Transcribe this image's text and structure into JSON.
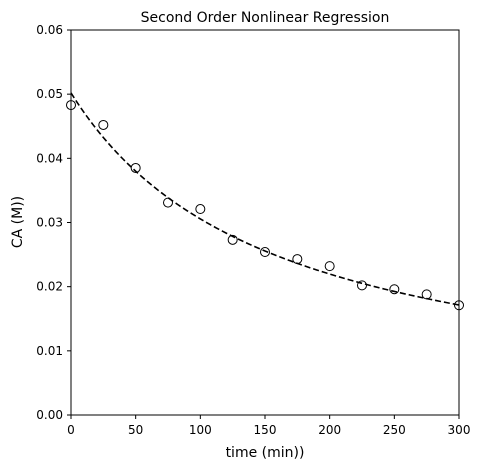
{
  "chart_data": {
    "type": "scatter",
    "title": "Second Order Nonlinear Regression",
    "xlabel": "time (min))",
    "ylabel": "CA (M))",
    "xlim": [
      0,
      300
    ],
    "ylim": [
      0,
      0.06
    ],
    "xticks": [
      0,
      50,
      100,
      150,
      200,
      250,
      300
    ],
    "yticks": [
      0.0,
      0.01,
      0.02,
      0.03,
      0.04,
      0.05,
      0.06
    ],
    "xtick_labels": [
      "0",
      "50",
      "100",
      "150",
      "200",
      "250",
      "300"
    ],
    "ytick_labels": [
      "0.00",
      "0.01",
      "0.02",
      "0.03",
      "0.04",
      "0.05",
      "0.06"
    ],
    "grid": false,
    "series": [
      {
        "type": "scatter",
        "marker": "open-circle",
        "color": "#000000",
        "x": [
          0,
          25,
          50,
          75,
          100,
          125,
          150,
          175,
          200,
          225,
          250,
          275,
          300
        ],
        "y": [
          0.0483,
          0.0452,
          0.0385,
          0.0331,
          0.0321,
          0.0273,
          0.0254,
          0.0243,
          0.0232,
          0.0202,
          0.0196,
          0.0188,
          0.0171
        ]
      },
      {
        "type": "line",
        "style": "dashed",
        "color": "#000000",
        "model": "second-order",
        "C0": 0.0502,
        "k": 0.128
      }
    ]
  }
}
